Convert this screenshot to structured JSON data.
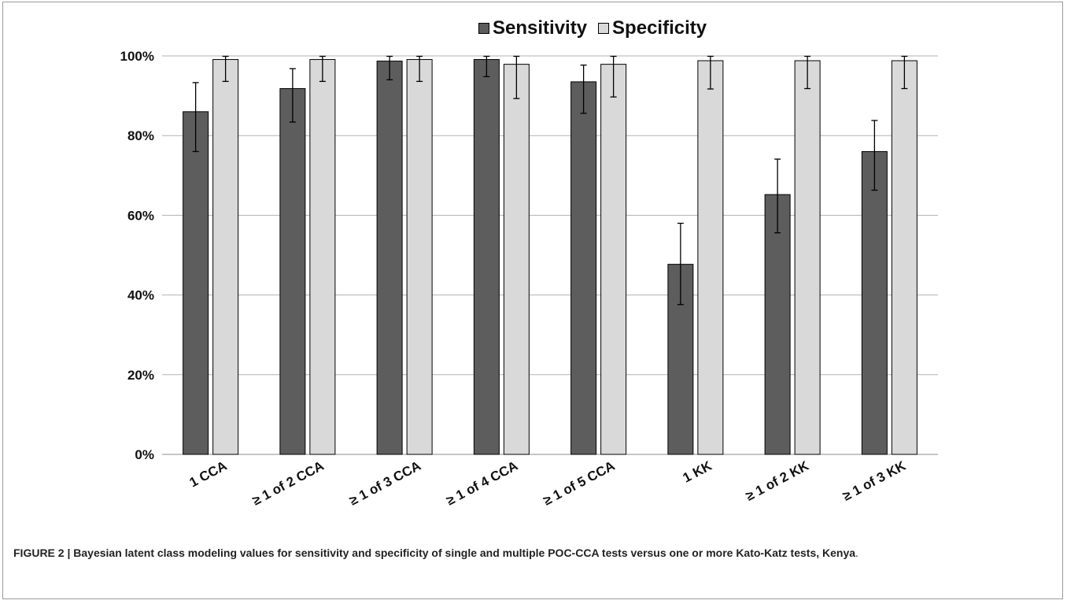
{
  "chart_data": {
    "type": "bar",
    "categories": [
      "1 CCA",
      "≥ 1 of 2 CCA",
      "≥ 1 of 3 CCA",
      "≥ 1 of 4 CCA",
      "≥ 1 of 5 CCA",
      "1 KK",
      "≥ 1 of 2  KK",
      "≥ 1 of 3  KK"
    ],
    "series": [
      {
        "name": "Sensitivity",
        "color": "#5d5d5d",
        "values": [
          86,
          91.8,
          98.7,
          99.1,
          93.5,
          47.7,
          65.2,
          76
        ],
        "error_low": [
          76,
          83.4,
          94,
          94.8,
          85.6,
          37.6,
          55.6,
          66.3
        ],
        "error_high": [
          93.3,
          96.8,
          99.9,
          99.9,
          97.7,
          58,
          74.1,
          83.8
        ]
      },
      {
        "name": "Specificity",
        "color": "#d9d9d9",
        "values": [
          99.1,
          99.1,
          99.1,
          97.9,
          97.9,
          98.8,
          98.8,
          98.8
        ],
        "error_low": [
          93.6,
          93.6,
          93.6,
          89.3,
          89.7,
          91.7,
          91.8,
          91.8
        ],
        "error_high": [
          99.9,
          99.9,
          99.9,
          99.9,
          99.9,
          99.9,
          99.9,
          99.9
        ]
      }
    ],
    "y_ticks": [
      "0%",
      "20%",
      "40%",
      "60%",
      "80%",
      "100%"
    ],
    "ylim": [
      0,
      100
    ],
    "grid": true,
    "legend_position": "top-center"
  },
  "caption": {
    "label": "FIGURE 2 | ",
    "text": "Bayesian latent class modeling values for sensitivity and specificity of single and multiple POC-CCA tests versus one or more Kato-Katz tests, Kenya",
    "end": "."
  }
}
